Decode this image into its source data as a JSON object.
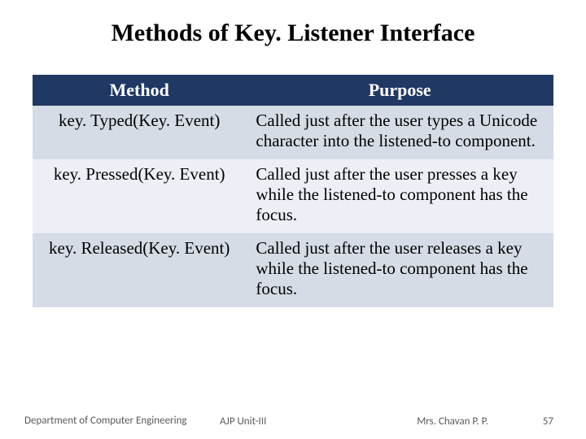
{
  "title": "Methods of Key. Listener Interface",
  "title_fontsize": 30,
  "table": {
    "header_bg": "#1f3864",
    "header_color": "#ffffff",
    "header_fontsize": 22,
    "cell_fontsize": 21,
    "row_alt_bg_odd": "#d6dce5",
    "row_alt_bg_even": "#ecf0f6",
    "columns": [
      "Method",
      "Purpose"
    ],
    "rows": [
      {
        "method": "key. Typed(Key. Event)",
        "purpose": "Called just after the user types a Unicode character into the listened-to component."
      },
      {
        "method": "key. Pressed(Key. Event)",
        "purpose": "Called just after the user presses a key while the listened-to component has the focus."
      },
      {
        "method": "key. Released(Key. Event)",
        "purpose": "Called just after the user releases a key while the listened-to component has the focus."
      }
    ]
  },
  "footer": {
    "dept": "Department of Computer Engineering",
    "unit": "AJP Unit-III",
    "author": "Mrs. Chavan P. P.",
    "page": "57",
    "fontsize": 13,
    "color": "#5a5a5a"
  }
}
